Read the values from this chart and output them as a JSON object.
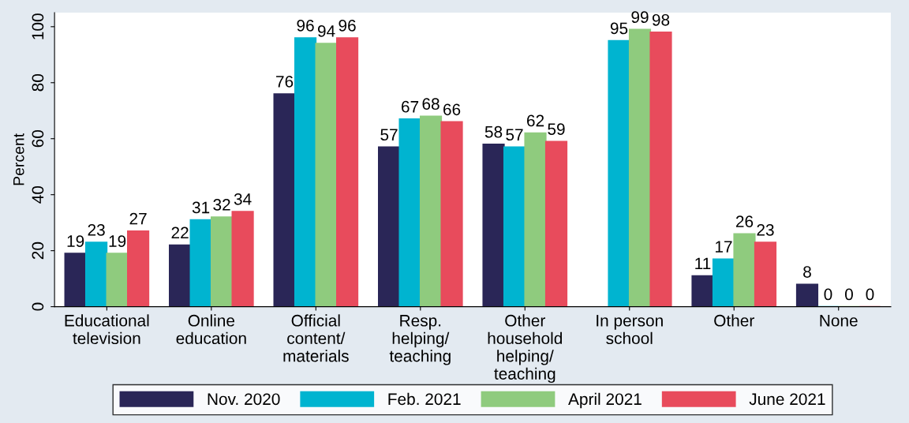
{
  "chart_data": {
    "type": "bar",
    "ylabel": "Percent",
    "categories": [
      "Educational\ntelevision",
      "Online\neducation",
      "Official\ncontent/\nmaterials",
      "Resp.\nhelping/\nteaching",
      "Other\nhousehold\nhelping/\nteaching",
      "In person\nschool",
      "Other",
      "None"
    ],
    "series": [
      {
        "name": "Nov. 2020",
        "color": "#2a2657",
        "values": [
          19,
          22,
          76,
          57,
          58,
          null,
          11,
          8
        ]
      },
      {
        "name": "Feb. 2021",
        "color": "#00b4d0",
        "values": [
          23,
          31,
          96,
          67,
          57,
          95,
          17,
          0
        ]
      },
      {
        "name": "April 2021",
        "color": "#8fcb7e",
        "values": [
          19,
          32,
          94,
          68,
          62,
          99,
          26,
          0
        ]
      },
      {
        "name": "June 2021",
        "color": "#e84b5c",
        "values": [
          27,
          34,
          96,
          66,
          59,
          98,
          23,
          0
        ]
      }
    ],
    "ylim": [
      0,
      105
    ],
    "yticks": [
      0,
      20,
      40,
      60,
      80,
      100
    ],
    "grid": false,
    "legend": "bottom",
    "data_labels": true
  }
}
